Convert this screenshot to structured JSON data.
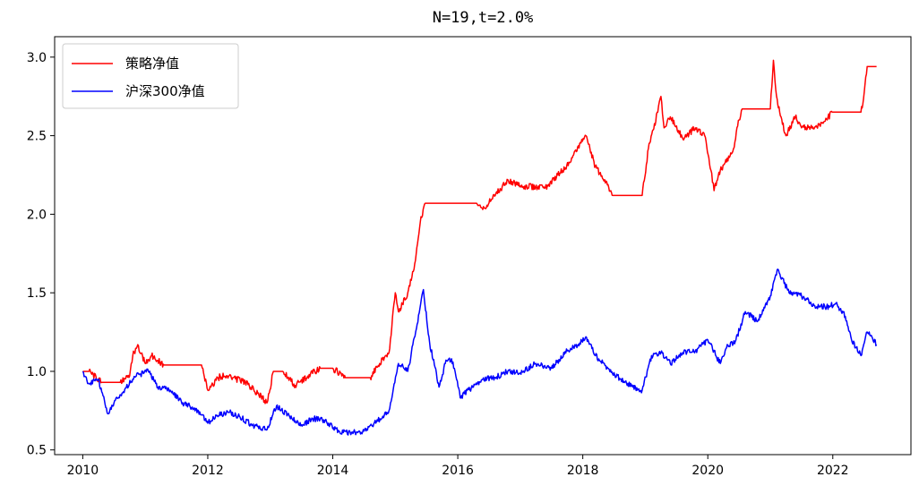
{
  "chart_data": {
    "type": "line",
    "title": "N=19,t=2.0%",
    "xlabel": "",
    "ylabel": "",
    "xlim": [
      2009.55,
      2023.25
    ],
    "ylim": [
      0.47,
      3.13
    ],
    "x_ticks": [
      "2010",
      "2012",
      "2014",
      "2016",
      "2018",
      "2020",
      "2022"
    ],
    "y_ticks": [
      "0.5",
      "1.0",
      "1.5",
      "2.0",
      "2.5",
      "3.0"
    ],
    "grid": false,
    "legend_position": "top-left",
    "series": [
      {
        "name": "策略净值",
        "color": "#ff0000",
        "x": [
          2010.0,
          2010.05,
          2010.1,
          2010.3,
          2010.6,
          2010.75,
          2010.8,
          2010.88,
          2011.0,
          2011.1,
          2011.2,
          2011.3,
          2011.5,
          2011.9,
          2012.0,
          2012.05,
          2012.2,
          2012.4,
          2012.6,
          2012.8,
          2012.95,
          2013.05,
          2013.2,
          2013.4,
          2013.6,
          2013.8,
          2014.0,
          2014.2,
          2014.6,
          2014.75,
          2014.9,
          2015.0,
          2015.05,
          2015.2,
          2015.3,
          2015.4,
          2015.48,
          2016.0,
          2016.3,
          2016.4,
          2016.6,
          2016.8,
          2017.0,
          2017.4,
          2017.6,
          2017.8,
          2017.95,
          2018.05,
          2018.2,
          2018.35,
          2018.48,
          2018.95,
          2019.05,
          2019.2,
          2019.25,
          2019.3,
          2019.4,
          2019.6,
          2019.8,
          2019.95,
          2020.05,
          2020.1,
          2020.2,
          2020.4,
          2020.5,
          2020.55,
          2021.0,
          2021.05,
          2021.1,
          2021.15,
          2021.25,
          2021.4,
          2021.5,
          2021.8,
          2022.0,
          2022.2,
          2022.45,
          2022.48,
          2022.55,
          2022.7
        ],
        "y": [
          1.0,
          1.0,
          1.0,
          0.93,
          0.93,
          0.97,
          1.1,
          1.17,
          1.05,
          1.1,
          1.07,
          1.04,
          1.04,
          1.04,
          0.88,
          0.9,
          0.97,
          0.96,
          0.93,
          0.86,
          0.8,
          1.0,
          1.0,
          0.91,
          0.97,
          1.02,
          1.02,
          0.96,
          0.96,
          1.05,
          1.12,
          1.5,
          1.38,
          1.5,
          1.65,
          1.95,
          2.07,
          2.07,
          2.07,
          2.03,
          2.12,
          2.22,
          2.18,
          2.17,
          2.25,
          2.33,
          2.45,
          2.5,
          2.3,
          2.22,
          2.12,
          2.12,
          2.42,
          2.65,
          2.75,
          2.55,
          2.62,
          2.48,
          2.55,
          2.5,
          2.28,
          2.15,
          2.28,
          2.4,
          2.6,
          2.67,
          2.67,
          2.98,
          2.75,
          2.65,
          2.5,
          2.62,
          2.55,
          2.56,
          2.65,
          2.65,
          2.65,
          2.7,
          2.94,
          2.94
        ]
      },
      {
        "name": "沪深300净值",
        "color": "#0000ff",
        "x": [
          2010.0,
          2010.1,
          2010.25,
          2010.4,
          2010.5,
          2010.65,
          2010.8,
          2010.9,
          2011.05,
          2011.2,
          2011.4,
          2011.6,
          2011.85,
          2012.0,
          2012.15,
          2012.35,
          2012.55,
          2012.75,
          2012.95,
          2013.1,
          2013.3,
          2013.5,
          2013.7,
          2013.9,
          2014.1,
          2014.3,
          2014.5,
          2014.7,
          2014.9,
          2015.05,
          2015.2,
          2015.35,
          2015.45,
          2015.55,
          2015.7,
          2015.8,
          2015.9,
          2016.05,
          2016.15,
          2016.25,
          2016.4,
          2016.6,
          2016.8,
          2017.0,
          2017.25,
          2017.5,
          2017.75,
          2017.95,
          2018.05,
          2018.2,
          2018.4,
          2018.6,
          2018.8,
          2018.95,
          2019.1,
          2019.25,
          2019.4,
          2019.6,
          2019.8,
          2020.0,
          2020.2,
          2020.3,
          2020.45,
          2020.6,
          2020.8,
          2021.0,
          2021.12,
          2021.3,
          2021.5,
          2021.7,
          2021.9,
          2022.05,
          2022.2,
          2022.3,
          2022.45,
          2022.55,
          2022.7
        ],
        "y": [
          1.0,
          0.92,
          0.95,
          0.73,
          0.8,
          0.87,
          0.95,
          0.98,
          1.0,
          0.9,
          0.88,
          0.8,
          0.75,
          0.67,
          0.72,
          0.74,
          0.7,
          0.65,
          0.63,
          0.78,
          0.72,
          0.66,
          0.7,
          0.68,
          0.62,
          0.61,
          0.62,
          0.68,
          0.75,
          1.05,
          1.0,
          1.3,
          1.52,
          1.18,
          0.9,
          1.05,
          1.08,
          0.83,
          0.88,
          0.9,
          0.95,
          0.96,
          1.0,
          0.99,
          1.05,
          1.02,
          1.13,
          1.18,
          1.22,
          1.1,
          1.02,
          0.95,
          0.9,
          0.88,
          1.1,
          1.12,
          1.05,
          1.12,
          1.13,
          1.2,
          1.05,
          1.15,
          1.2,
          1.38,
          1.32,
          1.48,
          1.65,
          1.5,
          1.48,
          1.42,
          1.41,
          1.43,
          1.35,
          1.2,
          1.1,
          1.25,
          1.17
        ]
      }
    ]
  }
}
